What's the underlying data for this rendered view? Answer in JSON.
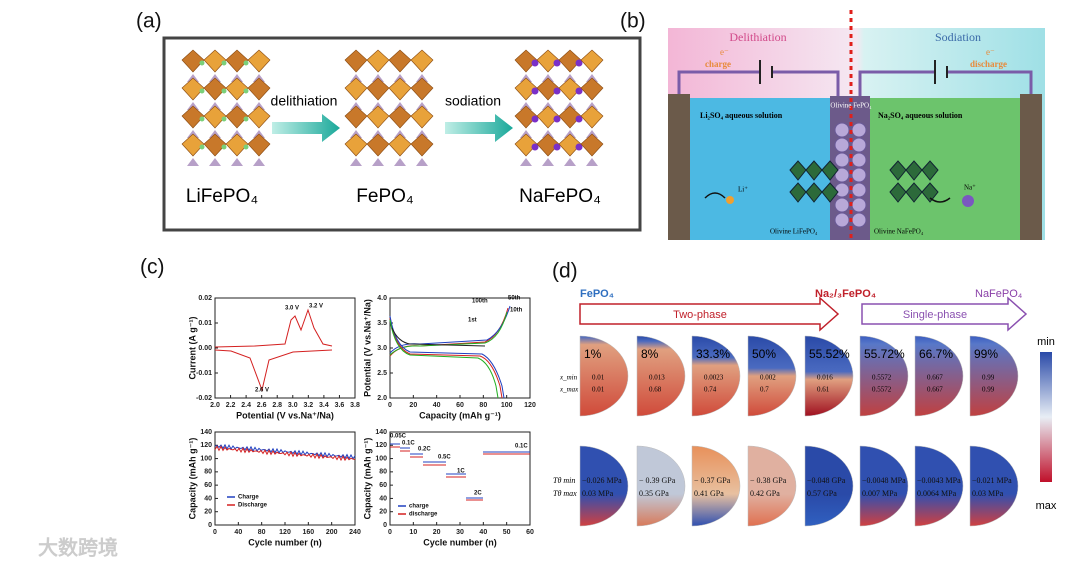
{
  "panel_a": {
    "label": "(a)",
    "arrow_1": "delithiation",
    "arrow_2": "sodiation",
    "materials": [
      "LiFePO₄",
      "FePO₄",
      "NaFePO₄"
    ]
  },
  "panel_b": {
    "label": "(b)",
    "left_title": "Delithiation",
    "right_title": "Sodiation",
    "left_electron": "e⁻",
    "left_current": "charge",
    "right_electron": "e⁻",
    "right_current": "discharge",
    "left_solution": "Li₂SO₄ aqueous solution",
    "right_solution": "Na₂SO₄ aqueous solution",
    "center": "Olivine FePO₄",
    "left_crystal": "Olivine LiFePO₄",
    "right_crystal": "Olivine NaFePO₄",
    "left_ion": "Li⁺",
    "right_ion": "Na⁺"
  },
  "panel_c": {
    "label": "(c)",
    "plots": [
      {
        "ylabel": "Current (A g⁻¹)",
        "xlabel": "Potential (V vs.Na⁺/Na)",
        "yticks": [
          "0.02",
          "0.01",
          "0.00",
          "-0.01",
          "-0.02"
        ],
        "xticks": [
          "2.0",
          "2.2",
          "2.4",
          "2.6",
          "2.8",
          "3.0",
          "3.2",
          "3.4",
          "3.6",
          "3.8"
        ],
        "annotations": [
          "3.0 V",
          "3.2 V",
          "2.6 V"
        ]
      },
      {
        "ylabel": "Potential (V vs.Na⁺/Na)",
        "xlabel": "Capacity (mAh g⁻¹)",
        "yticks": [
          "4.0",
          "3.5",
          "3.0",
          "2.5",
          "2.0"
        ],
        "xticks": [
          "0",
          "20",
          "40",
          "60",
          "80",
          "100",
          "120"
        ],
        "annotations": [
          "100th",
          "50th",
          "10th",
          "1st"
        ]
      },
      {
        "ylabel": "Capacity (mAh g⁻¹)",
        "xlabel": "Cycle number (n)",
        "yticks": [
          "140",
          "120",
          "100",
          "80",
          "60",
          "40",
          "20",
          "0"
        ],
        "xticks": [
          "0",
          "40",
          "80",
          "120",
          "160",
          "200",
          "240"
        ],
        "legend": [
          "Charge",
          "Discharge"
        ]
      },
      {
        "ylabel": "Capacity (mAh g⁻¹)",
        "xlabel": "Cycle number (n)",
        "yticks": [
          "140",
          "120",
          "100",
          "80",
          "60",
          "40",
          "20",
          "0"
        ],
        "xticks": [
          "0",
          "10",
          "20",
          "30",
          "40",
          "50",
          "60"
        ],
        "annotations": [
          "0.05C",
          "0.1C",
          "0.2C",
          "0.5C",
          "1C",
          "2C",
          "0.1C"
        ],
        "legend": [
          "charge",
          "discharge"
        ]
      }
    ]
  },
  "panel_d": {
    "label": "(d)",
    "start": "FePO₄",
    "middle": "Na₂/₃FePO₄",
    "end": "NaFePO₄",
    "phase_1": "Two-phase",
    "phase_2": "Single-phase",
    "row1_labels": [
      "x_min",
      "x_max"
    ],
    "row2_labels": [
      "Tθ min",
      "Tθ max"
    ],
    "percents": [
      "1%",
      "8%",
      "33.3%",
      "50%",
      "55.52%",
      "55.72%",
      "66.7%",
      "99%"
    ],
    "x_min": [
      "0.01",
      "0.013",
      "0.0023",
      "0.002",
      "0.016",
      "0.5572",
      "0.667",
      "0.99"
    ],
    "x_max": [
      "0.01",
      "0.68",
      "0.74",
      "0.7",
      "0.61",
      "0.5572",
      "0.667",
      "0.99"
    ],
    "stress_min": [
      "−0.026 MPa",
      "− 0.39 GPa",
      "− 0.37 GPa",
      "− 0.38 GPa",
      "−0.048 GPa",
      "−0.0048 MPa",
      "−0.0043 MPa",
      "−0.021 MPa"
    ],
    "stress_max": [
      "0.03 MPa",
      "0.35 GPa",
      "0.41 GPa",
      "0.42 GPa",
      "0.57 GPa",
      "0.007 MPa",
      "0.0064 MPa",
      "0.03 MPa"
    ],
    "colorbar_min": "min",
    "colorbar_max": "max"
  },
  "watermark": "大数跨境"
}
